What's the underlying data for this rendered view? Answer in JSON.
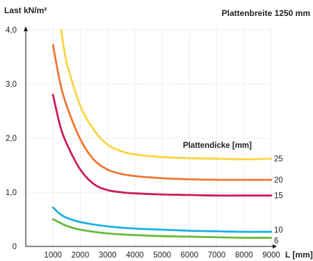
{
  "chart_data": {
    "type": "line",
    "title": "Plattenbreite 1250 mm",
    "ylabel": "Last kN/m²",
    "xlabel": "L [mm]",
    "legend_title": "Plattendicke [mm]",
    "xlim": [
      0,
      9000
    ],
    "ylim": [
      0,
      4.0
    ],
    "x_ticks": [
      1000,
      2000,
      3000,
      4000,
      5000,
      6000,
      7000,
      8000,
      9000
    ],
    "x_tick_labels": [
      "1000",
      "2000",
      "3000",
      "4000",
      "5000",
      "6000",
      "7000",
      "8000",
      "9000"
    ],
    "y_ticks": [
      0,
      1.0,
      2.0,
      3.0,
      4.0
    ],
    "y_tick_labels": [
      "0",
      "1,0",
      "2,0",
      "3,0",
      "4,0"
    ],
    "grid": true,
    "series": [
      {
        "name": "25",
        "color": "#fcd33f",
        "points": [
          [
            1300,
            4.0
          ],
          [
            1500,
            3.4
          ],
          [
            2000,
            2.6
          ],
          [
            2500,
            2.15
          ],
          [
            3000,
            1.88
          ],
          [
            3500,
            1.76
          ],
          [
            4000,
            1.7
          ],
          [
            5000,
            1.65
          ],
          [
            6000,
            1.63
          ],
          [
            7000,
            1.62
          ],
          [
            8000,
            1.61
          ],
          [
            9000,
            1.62
          ]
        ]
      },
      {
        "name": "20",
        "color": "#ee7733",
        "points": [
          [
            1000,
            3.72
          ],
          [
            1250,
            3.05
          ],
          [
            1500,
            2.6
          ],
          [
            2000,
            1.98
          ],
          [
            2500,
            1.6
          ],
          [
            3000,
            1.42
          ],
          [
            3500,
            1.34
          ],
          [
            4000,
            1.3
          ],
          [
            5000,
            1.26
          ],
          [
            6000,
            1.24
          ],
          [
            7000,
            1.23
          ],
          [
            8000,
            1.23
          ],
          [
            9000,
            1.23
          ]
        ]
      },
      {
        "name": "15",
        "color": "#cc1d4f",
        "points": [
          [
            1000,
            2.8
          ],
          [
            1250,
            2.25
          ],
          [
            1500,
            1.9
          ],
          [
            2000,
            1.42
          ],
          [
            2500,
            1.15
          ],
          [
            3000,
            1.04
          ],
          [
            3500,
            1.0
          ],
          [
            4000,
            0.98
          ],
          [
            5000,
            0.96
          ],
          [
            6000,
            0.95
          ],
          [
            7000,
            0.94
          ],
          [
            8000,
            0.94
          ],
          [
            9000,
            0.94
          ]
        ]
      },
      {
        "name": "10",
        "color": "#19b1e3",
        "points": [
          [
            1000,
            0.72
          ],
          [
            1250,
            0.6
          ],
          [
            1500,
            0.53
          ],
          [
            2000,
            0.45
          ],
          [
            3000,
            0.37
          ],
          [
            4000,
            0.33
          ],
          [
            5000,
            0.31
          ],
          [
            6000,
            0.29
          ],
          [
            7000,
            0.28
          ],
          [
            8000,
            0.27
          ],
          [
            9000,
            0.27
          ]
        ]
      },
      {
        "name": "6",
        "color": "#6ab83d",
        "points": [
          [
            1000,
            0.5
          ],
          [
            1250,
            0.44
          ],
          [
            1500,
            0.38
          ],
          [
            2000,
            0.31
          ],
          [
            3000,
            0.24
          ],
          [
            4000,
            0.21
          ],
          [
            5000,
            0.19
          ],
          [
            6000,
            0.18
          ],
          [
            7000,
            0.17
          ],
          [
            8000,
            0.16
          ],
          [
            9000,
            0.16
          ]
        ]
      }
    ],
    "series_end_labels": [
      "25",
      "20",
      "15",
      "10",
      "6"
    ]
  }
}
